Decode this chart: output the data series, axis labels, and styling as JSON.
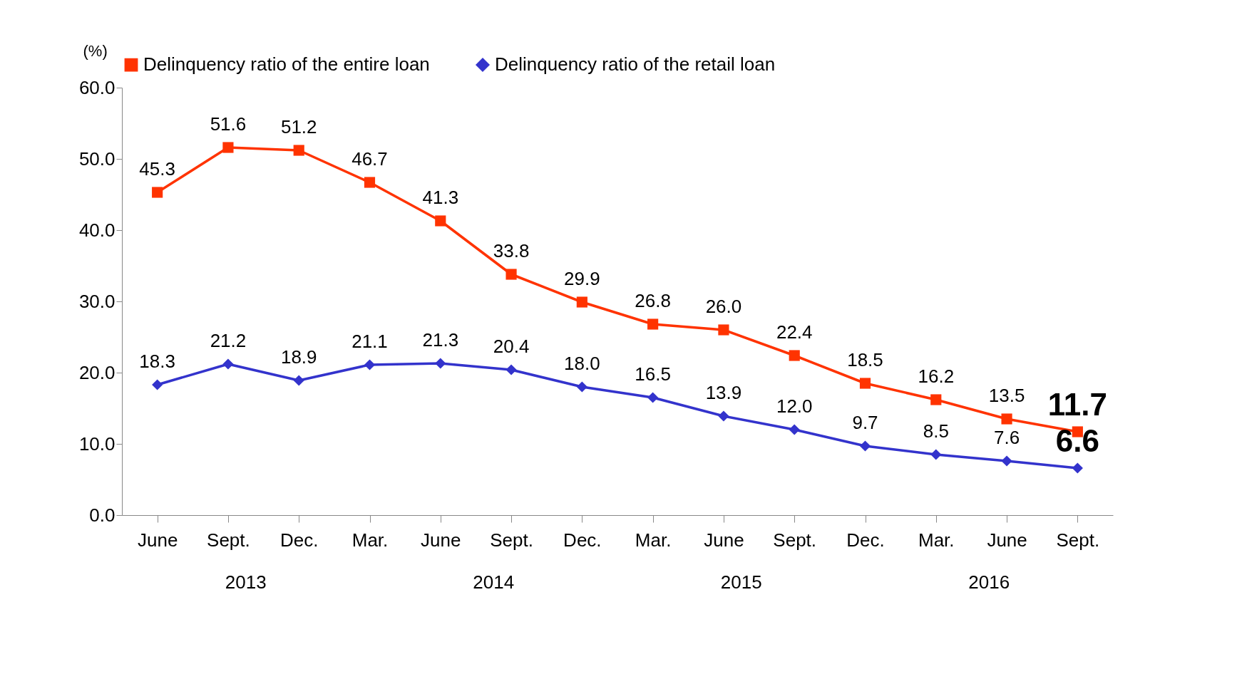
{
  "chart_data": {
    "type": "line",
    "ylabel": "(%)",
    "categories": [
      "June",
      "Sept.",
      "Dec.",
      "Mar.",
      "June",
      "Sept.",
      "Dec.",
      "Mar.",
      "June",
      "Sept.",
      "Dec.",
      "Mar.",
      "June",
      "Sept."
    ],
    "series": [
      {
        "name": "Delinquency ratio of the entire loan",
        "color": "#ff3300",
        "marker": "square",
        "values": [
          45.3,
          51.6,
          51.2,
          46.7,
          41.3,
          33.8,
          29.9,
          26.8,
          26.0,
          22.4,
          18.5,
          16.2,
          13.5,
          11.7
        ],
        "value_labels": [
          "45.3",
          "51.6",
          "51.2",
          "46.7",
          "41.3",
          "33.8",
          "29.9",
          "26.8",
          "26.0",
          "22.4",
          "18.5",
          "16.2",
          "13.5",
          "11.7"
        ]
      },
      {
        "name": "Delinquency ratio of the retail loan",
        "color": "#3333cc",
        "marker": "diamond",
        "values": [
          18.3,
          21.2,
          18.9,
          21.1,
          21.3,
          20.4,
          18.0,
          16.5,
          13.9,
          12.0,
          9.7,
          8.5,
          7.6,
          6.6
        ],
        "value_labels": [
          "18.3",
          "21.2",
          "18.9",
          "21.1",
          "21.3",
          "20.4",
          "18.0",
          "16.5",
          "13.9",
          "12.0",
          "9.7",
          "8.5",
          "7.6",
          "6.6"
        ]
      }
    ],
    "ylim": [
      0,
      60
    ],
    "yticks": [
      {
        "value": 0,
        "label": "0.0"
      },
      {
        "value": 10,
        "label": "10.0"
      },
      {
        "value": 20,
        "label": "20.0"
      },
      {
        "value": 30,
        "label": "30.0"
      },
      {
        "value": 40,
        "label": "40.0"
      },
      {
        "value": 50,
        "label": "50.0"
      },
      {
        "value": 60,
        "label": "60.0"
      }
    ],
    "annotations": [
      "2013",
      "2014",
      "2015",
      "2016"
    ],
    "grid": false,
    "legend": "top",
    "line_style": "solid"
  }
}
